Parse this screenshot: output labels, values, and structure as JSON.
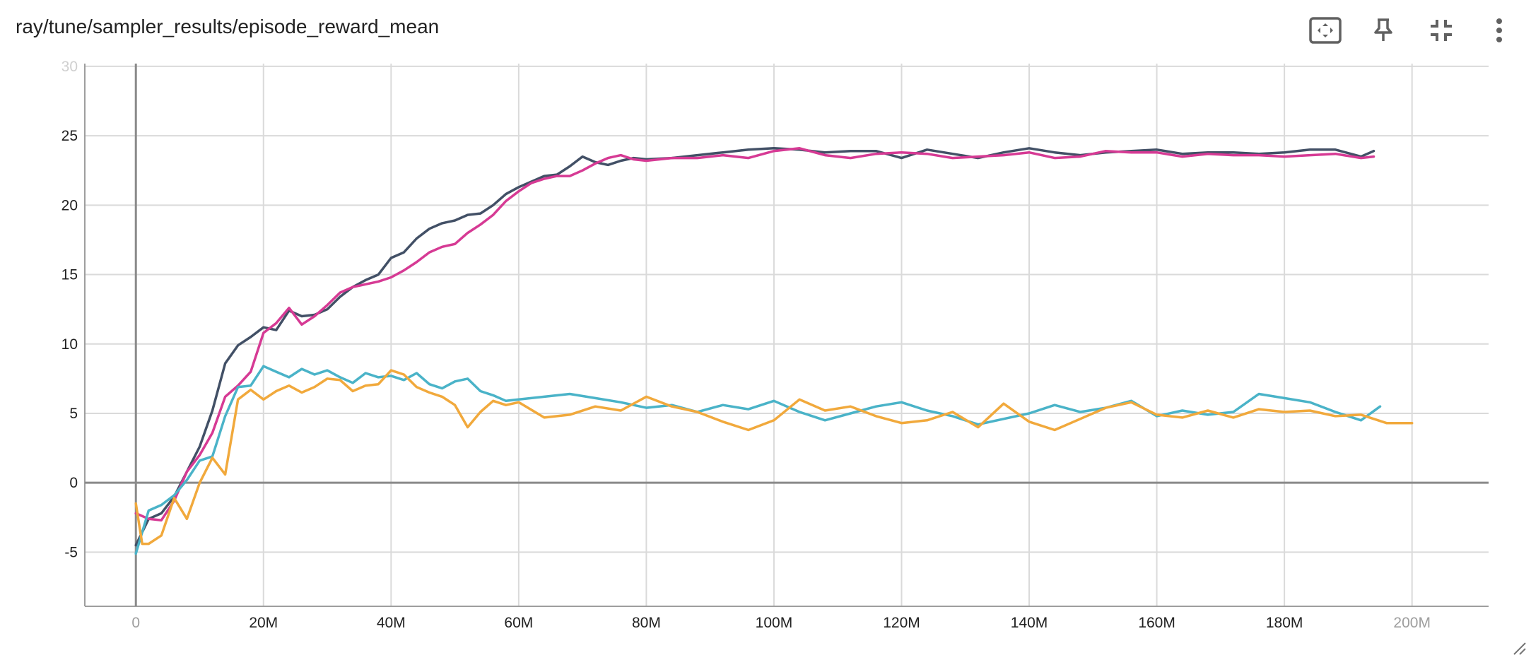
{
  "card": {
    "title": "ray/tune/sampler_results/episode_reward_mean"
  },
  "toolbar": {
    "buttons": [
      {
        "name": "fit-domain-icon"
      },
      {
        "name": "pin-icon"
      },
      {
        "name": "collapse-icon"
      },
      {
        "name": "more-vert-icon"
      }
    ]
  },
  "chart_data": {
    "type": "line",
    "title": "ray/tune/sampler_results/episode_reward_mean",
    "xlabel": "",
    "ylabel": "",
    "xlim": [
      -8000000,
      212000000
    ],
    "ylim": [
      -8.9,
      30.2
    ],
    "x_ticks": [
      "0",
      "20M",
      "40M",
      "60M",
      "80M",
      "100M",
      "120M",
      "140M",
      "160M",
      "180M",
      "200M"
    ],
    "y_ticks": [
      "30",
      "25",
      "20",
      "15",
      "10",
      "5",
      "0",
      "-5"
    ],
    "grid": true,
    "legend": "none",
    "series": [
      {
        "color": "#425066",
        "x": [
          0,
          2000000,
          4000000,
          6000000,
          8000000,
          10000000,
          12000000,
          14000000,
          16000000,
          18000000,
          20000000,
          22000000,
          24000000,
          26000000,
          28000000,
          30000000,
          32000000,
          34000000,
          36000000,
          38000000,
          40000000,
          42000000,
          44000000,
          46000000,
          48000000,
          50000000,
          52000000,
          54000000,
          56000000,
          58000000,
          60000000,
          62000000,
          64000000,
          66000000,
          68000000,
          70000000,
          72000000,
          74000000,
          76000000,
          78000000,
          80000000,
          84000000,
          88000000,
          92000000,
          96000000,
          100000000,
          104000000,
          108000000,
          112000000,
          116000000,
          120000000,
          124000000,
          128000000,
          132000000,
          136000000,
          140000000,
          144000000,
          148000000,
          152000000,
          156000000,
          160000000,
          164000000,
          168000000,
          172000000,
          176000000,
          180000000,
          184000000,
          188000000,
          192000000,
          194000000
        ],
        "y": [
          -4.5,
          -2.6,
          -2.2,
          -1.0,
          0.8,
          2.6,
          5.2,
          8.6,
          9.9,
          10.5,
          11.2,
          11.0,
          12.4,
          12.0,
          12.1,
          12.5,
          13.4,
          14.1,
          14.6,
          15.0,
          16.2,
          16.6,
          17.6,
          18.3,
          18.7,
          18.9,
          19.3,
          19.4,
          20.0,
          20.8,
          21.3,
          21.7,
          22.1,
          22.2,
          22.8,
          23.5,
          23.1,
          22.9,
          23.2,
          23.4,
          23.3,
          23.4,
          23.6,
          23.8,
          24.0,
          24.1,
          24.0,
          23.8,
          23.9,
          23.9,
          23.4,
          24.0,
          23.7,
          23.4,
          23.8,
          24.1,
          23.8,
          23.6,
          23.8,
          23.9,
          24.0,
          23.7,
          23.8,
          23.8,
          23.7,
          23.8,
          24.0,
          24.0,
          23.5,
          23.9
        ]
      },
      {
        "color": "#d63a94",
        "x": [
          0,
          2000000,
          4000000,
          6000000,
          8000000,
          10000000,
          12000000,
          14000000,
          16000000,
          18000000,
          20000000,
          22000000,
          24000000,
          26000000,
          28000000,
          30000000,
          32000000,
          34000000,
          36000000,
          38000000,
          40000000,
          42000000,
          44000000,
          46000000,
          48000000,
          50000000,
          52000000,
          54000000,
          56000000,
          58000000,
          60000000,
          62000000,
          64000000,
          66000000,
          68000000,
          70000000,
          72000000,
          74000000,
          76000000,
          78000000,
          80000000,
          84000000,
          88000000,
          92000000,
          96000000,
          100000000,
          104000000,
          108000000,
          112000000,
          116000000,
          120000000,
          124000000,
          128000000,
          132000000,
          136000000,
          140000000,
          144000000,
          148000000,
          152000000,
          156000000,
          160000000,
          164000000,
          168000000,
          172000000,
          176000000,
          180000000,
          184000000,
          188000000,
          192000000,
          194000000
        ],
        "y": [
          -2.2,
          -2.6,
          -2.7,
          -1.3,
          0.8,
          2.0,
          3.6,
          6.2,
          7.0,
          8.0,
          10.8,
          11.5,
          12.6,
          11.4,
          12.0,
          12.8,
          13.7,
          14.1,
          14.3,
          14.5,
          14.8,
          15.3,
          15.9,
          16.6,
          17.0,
          17.2,
          18.0,
          18.6,
          19.3,
          20.3,
          21.0,
          21.6,
          21.9,
          22.1,
          22.1,
          22.5,
          23.0,
          23.4,
          23.6,
          23.3,
          23.2,
          23.4,
          23.4,
          23.6,
          23.4,
          23.9,
          24.1,
          23.6,
          23.4,
          23.7,
          23.8,
          23.7,
          23.4,
          23.5,
          23.6,
          23.8,
          23.4,
          23.5,
          23.9,
          23.8,
          23.8,
          23.5,
          23.7,
          23.6,
          23.6,
          23.5,
          23.6,
          23.7,
          23.4,
          23.5
        ]
      },
      {
        "color": "#4ab3c8",
        "x": [
          0,
          2000000,
          4000000,
          6000000,
          8000000,
          10000000,
          12000000,
          14000000,
          16000000,
          18000000,
          20000000,
          22000000,
          24000000,
          26000000,
          28000000,
          30000000,
          32000000,
          34000000,
          36000000,
          38000000,
          40000000,
          42000000,
          44000000,
          46000000,
          48000000,
          50000000,
          52000000,
          54000000,
          56000000,
          58000000,
          60000000,
          64000000,
          68000000,
          72000000,
          76000000,
          80000000,
          84000000,
          88000000,
          92000000,
          96000000,
          100000000,
          104000000,
          108000000,
          112000000,
          116000000,
          120000000,
          124000000,
          128000000,
          132000000,
          136000000,
          140000000,
          144000000,
          148000000,
          152000000,
          156000000,
          160000000,
          164000000,
          168000000,
          172000000,
          176000000,
          180000000,
          184000000,
          188000000,
          192000000,
          195000000
        ],
        "y": [
          -5.1,
          -2.0,
          -1.6,
          -0.9,
          0.2,
          1.6,
          1.9,
          4.8,
          6.9,
          7.0,
          8.4,
          8.0,
          7.6,
          8.2,
          7.8,
          8.1,
          7.6,
          7.2,
          7.9,
          7.6,
          7.7,
          7.4,
          7.9,
          7.1,
          6.8,
          7.3,
          7.5,
          6.6,
          6.3,
          5.9,
          6.0,
          6.2,
          6.4,
          6.1,
          5.8,
          5.4,
          5.6,
          5.1,
          5.6,
          5.3,
          5.9,
          5.1,
          4.5,
          5.0,
          5.5,
          5.8,
          5.2,
          4.8,
          4.2,
          4.6,
          5.0,
          5.6,
          5.1,
          5.4,
          5.9,
          4.8,
          5.2,
          4.9,
          5.1,
          6.4,
          6.1,
          5.8,
          5.1,
          4.5,
          5.5
        ]
      },
      {
        "color": "#f1a93c",
        "x": [
          0,
          1000000,
          2000000,
          4000000,
          6000000,
          8000000,
          10000000,
          12000000,
          14000000,
          16000000,
          18000000,
          20000000,
          22000000,
          24000000,
          26000000,
          28000000,
          30000000,
          32000000,
          34000000,
          36000000,
          38000000,
          40000000,
          42000000,
          44000000,
          46000000,
          48000000,
          50000000,
          52000000,
          54000000,
          56000000,
          58000000,
          60000000,
          64000000,
          68000000,
          72000000,
          76000000,
          80000000,
          84000000,
          88000000,
          92000000,
          96000000,
          100000000,
          104000000,
          108000000,
          112000000,
          116000000,
          120000000,
          124000000,
          128000000,
          132000000,
          136000000,
          140000000,
          144000000,
          148000000,
          152000000,
          156000000,
          160000000,
          164000000,
          168000000,
          172000000,
          176000000,
          180000000,
          184000000,
          188000000,
          192000000,
          196000000,
          200000000
        ],
        "y": [
          -1.5,
          -4.4,
          -4.4,
          -3.8,
          -1.1,
          -2.6,
          0.0,
          1.8,
          0.6,
          6.0,
          6.7,
          6.0,
          6.6,
          7.0,
          6.5,
          6.9,
          7.5,
          7.4,
          6.6,
          7.0,
          7.1,
          8.1,
          7.8,
          6.9,
          6.5,
          6.2,
          5.6,
          4.0,
          5.1,
          5.9,
          5.6,
          5.8,
          4.7,
          4.9,
          5.5,
          5.2,
          6.2,
          5.5,
          5.1,
          4.4,
          3.8,
          4.5,
          6.0,
          5.2,
          5.5,
          4.8,
          4.3,
          4.5,
          5.1,
          4.0,
          5.7,
          4.4,
          3.8,
          4.6,
          5.4,
          5.8,
          4.9,
          4.7,
          5.2,
          4.7,
          5.3,
          5.1,
          5.2,
          4.8,
          4.9,
          4.3,
          4.3
        ]
      }
    ]
  }
}
